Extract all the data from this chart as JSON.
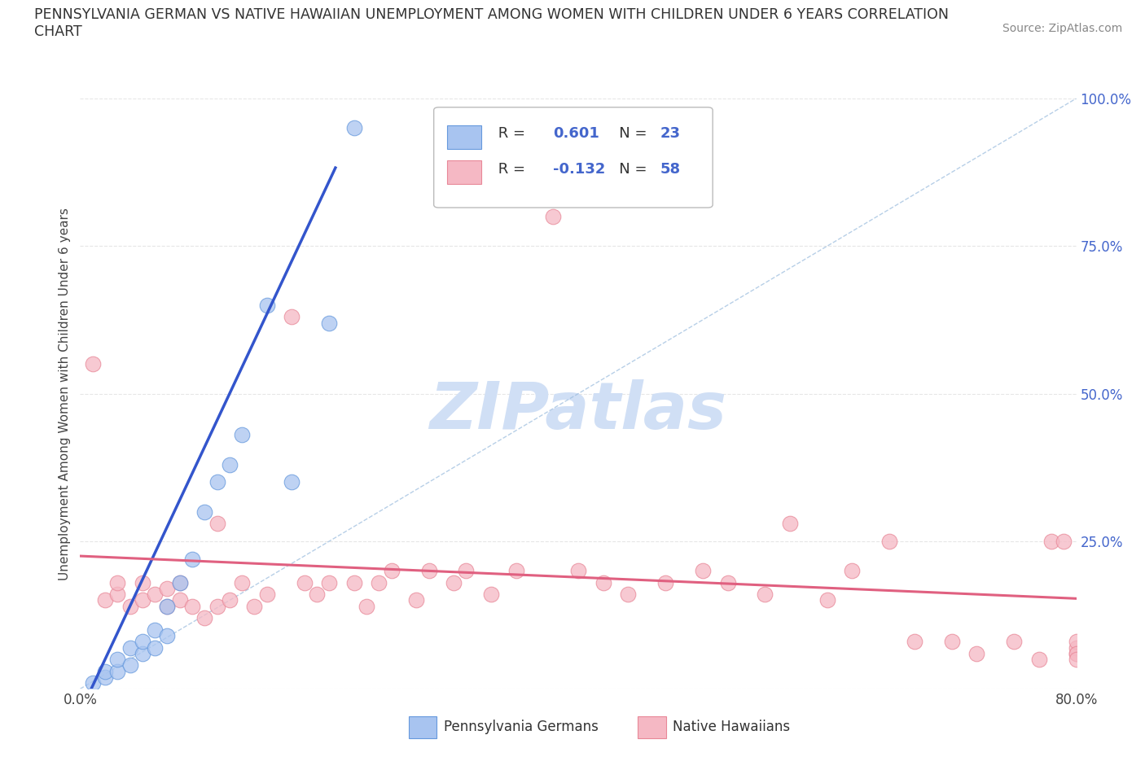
{
  "title": "PENNSYLVANIA GERMAN VS NATIVE HAWAIIAN UNEMPLOYMENT AMONG WOMEN WITH CHILDREN UNDER 6 YEARS CORRELATION\nCHART",
  "source_text": "Source: ZipAtlas.com",
  "ylabel": "Unemployment Among Women with Children Under 6 years",
  "xlim": [
    0,
    0.8
  ],
  "ylim": [
    0,
    1.0
  ],
  "xticks": [
    0.0,
    0.1,
    0.2,
    0.3,
    0.4,
    0.5,
    0.6,
    0.7,
    0.8
  ],
  "xticklabels": [
    "0.0%",
    "",
    "",
    "",
    "",
    "",
    "",
    "",
    "80.0%"
  ],
  "yticks_right": [
    0.0,
    0.25,
    0.5,
    0.75,
    1.0
  ],
  "yticklabels_right": [
    "",
    "25.0%",
    "50.0%",
    "75.0%",
    "100.0%"
  ],
  "blue_color": "#a8c4f0",
  "blue_edge": "#6699dd",
  "pink_color": "#f5b8c4",
  "pink_edge": "#e88898",
  "blue_r": "0.601",
  "blue_n": "23",
  "pink_r": "-0.132",
  "pink_n": "58",
  "legend_r_color": "#4466cc",
  "watermark": "ZIPatlas",
  "watermark_color": "#d0dff5",
  "grid_color": "#e0e0e0",
  "blue_trend_color": "#3355cc",
  "pink_trend_color": "#e06080",
  "dash_color": "#99bbdd",
  "blue_scatter_x": [
    0.01,
    0.02,
    0.02,
    0.03,
    0.03,
    0.04,
    0.04,
    0.05,
    0.05,
    0.06,
    0.06,
    0.07,
    0.07,
    0.08,
    0.09,
    0.1,
    0.11,
    0.12,
    0.13,
    0.15,
    0.17,
    0.2,
    0.22
  ],
  "blue_scatter_y": [
    0.01,
    0.02,
    0.03,
    0.03,
    0.05,
    0.04,
    0.07,
    0.06,
    0.08,
    0.07,
    0.1,
    0.09,
    0.14,
    0.18,
    0.22,
    0.3,
    0.35,
    0.38,
    0.43,
    0.65,
    0.35,
    0.62,
    0.95
  ],
  "pink_scatter_x": [
    0.01,
    0.02,
    0.03,
    0.03,
    0.04,
    0.05,
    0.05,
    0.06,
    0.07,
    0.07,
    0.08,
    0.08,
    0.09,
    0.1,
    0.11,
    0.11,
    0.12,
    0.13,
    0.14,
    0.15,
    0.17,
    0.18,
    0.19,
    0.2,
    0.22,
    0.23,
    0.24,
    0.25,
    0.27,
    0.28,
    0.3,
    0.31,
    0.33,
    0.35,
    0.38,
    0.4,
    0.42,
    0.44,
    0.47,
    0.5,
    0.52,
    0.55,
    0.57,
    0.6,
    0.62,
    0.65,
    0.67,
    0.7,
    0.72,
    0.75,
    0.77,
    0.78,
    0.79,
    0.8,
    0.8,
    0.8,
    0.8,
    0.8
  ],
  "pink_scatter_y": [
    0.55,
    0.15,
    0.16,
    0.18,
    0.14,
    0.15,
    0.18,
    0.16,
    0.14,
    0.17,
    0.15,
    0.18,
    0.14,
    0.12,
    0.14,
    0.28,
    0.15,
    0.18,
    0.14,
    0.16,
    0.63,
    0.18,
    0.16,
    0.18,
    0.18,
    0.14,
    0.18,
    0.2,
    0.15,
    0.2,
    0.18,
    0.2,
    0.16,
    0.2,
    0.8,
    0.2,
    0.18,
    0.16,
    0.18,
    0.2,
    0.18,
    0.16,
    0.28,
    0.15,
    0.2,
    0.25,
    0.08,
    0.08,
    0.06,
    0.08,
    0.05,
    0.25,
    0.25,
    0.06,
    0.07,
    0.08,
    0.06,
    0.05
  ]
}
